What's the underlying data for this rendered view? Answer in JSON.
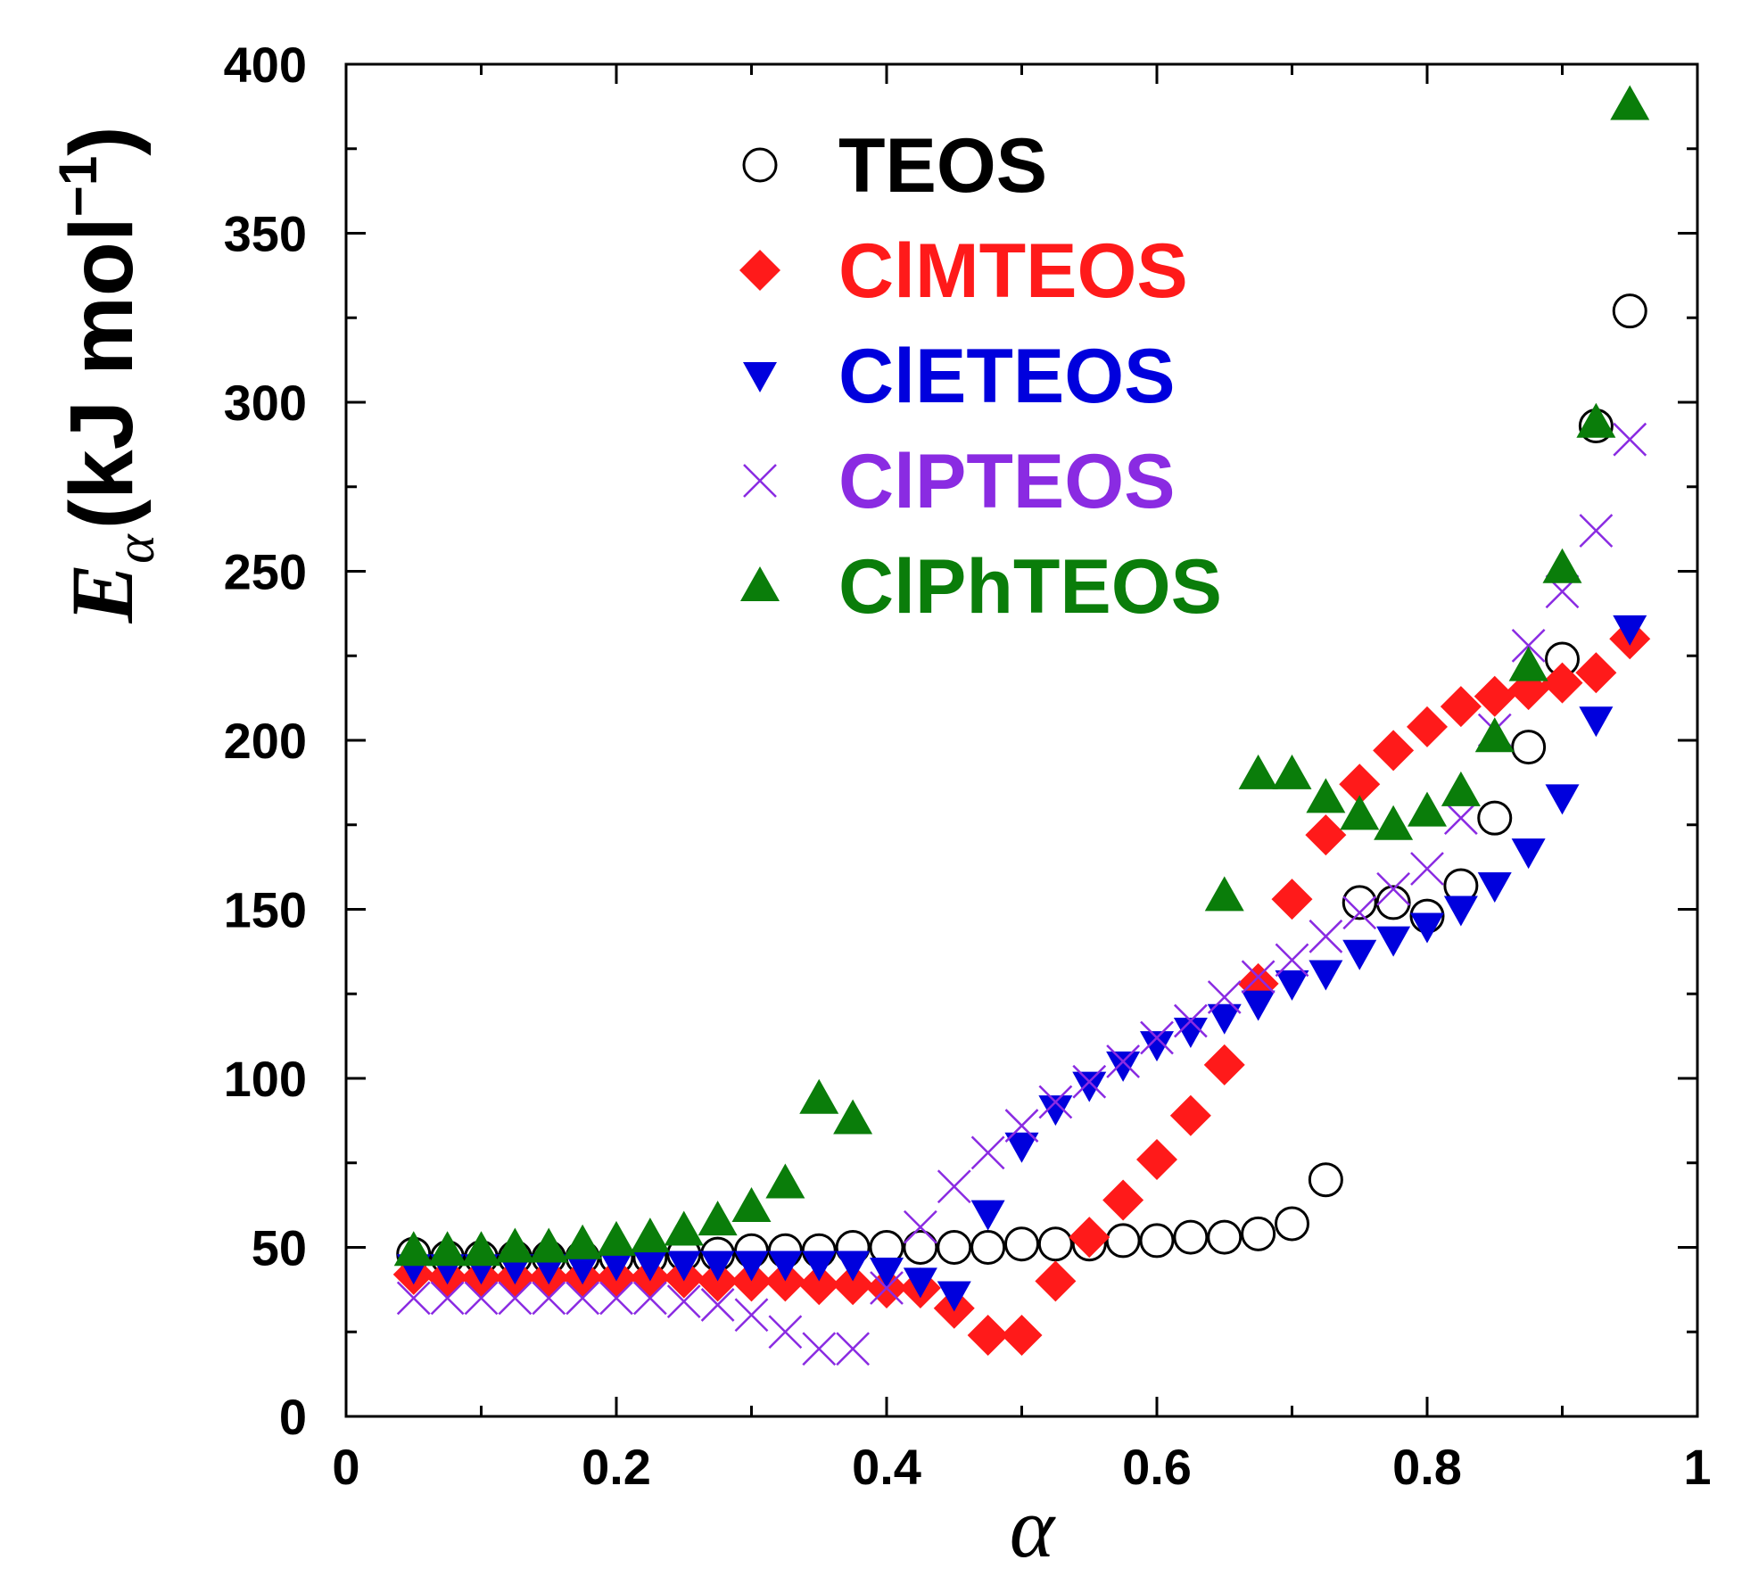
{
  "chart_data": {
    "type": "scatter",
    "title": "",
    "xlabel": "α",
    "ylabel": {
      "symbol": "E",
      "subscript": "α",
      "units_pre": "(kJ mol",
      "units_sup": "−1",
      "units_post": ")"
    },
    "xlim": [
      0,
      1
    ],
    "ylim": [
      0,
      400
    ],
    "x_ticks": [
      0,
      0.2,
      0.4,
      0.6,
      0.8,
      1
    ],
    "x_tick_labels": [
      "0",
      "0.2",
      "0.4",
      "0.6",
      "0.8",
      "1"
    ],
    "x_minor_ticks": [
      0.1,
      0.3,
      0.5,
      0.7,
      0.9
    ],
    "y_ticks": [
      0,
      50,
      100,
      150,
      200,
      250,
      300,
      350,
      400
    ],
    "y_tick_labels": [
      "0",
      "50",
      "100",
      "150",
      "200",
      "250",
      "300",
      "350",
      "400"
    ],
    "y_minor_ticks": [
      25,
      75,
      125,
      175,
      225,
      275,
      325,
      375
    ],
    "grid": false,
    "legend_position": "top-center",
    "series": [
      {
        "name": "TEOS",
        "color": "#000000",
        "marker": "open-circle",
        "x": [
          0.05,
          0.075,
          0.1,
          0.125,
          0.15,
          0.175,
          0.2,
          0.225,
          0.25,
          0.275,
          0.3,
          0.325,
          0.35,
          0.375,
          0.4,
          0.425,
          0.45,
          0.475,
          0.5,
          0.525,
          0.55,
          0.575,
          0.6,
          0.625,
          0.65,
          0.675,
          0.7,
          0.725,
          0.75,
          0.775,
          0.8,
          0.825,
          0.85,
          0.875,
          0.9,
          0.925,
          0.95
        ],
        "values": [
          48,
          47,
          47,
          47,
          47,
          47,
          47,
          47,
          48,
          48,
          49,
          49,
          49,
          50,
          50,
          50,
          50,
          50,
          51,
          51,
          51,
          52,
          52,
          53,
          53,
          54,
          57,
          70,
          152,
          152,
          148,
          157,
          177,
          198,
          224,
          293,
          327
        ]
      },
      {
        "name": "ClMTEOS",
        "color": "#ff1a1a",
        "marker": "diamond",
        "x": [
          0.05,
          0.075,
          0.1,
          0.125,
          0.15,
          0.175,
          0.2,
          0.225,
          0.25,
          0.275,
          0.3,
          0.325,
          0.35,
          0.375,
          0.4,
          0.425,
          0.45,
          0.475,
          0.5,
          0.525,
          0.55,
          0.575,
          0.6,
          0.625,
          0.65,
          0.675,
          0.7,
          0.725,
          0.75,
          0.775,
          0.8,
          0.825,
          0.85,
          0.875,
          0.9,
          0.925,
          0.95
        ],
        "values": [
          42,
          41,
          41,
          41,
          41,
          41,
          41,
          41,
          41,
          40,
          40,
          40,
          39,
          39,
          38,
          38,
          32,
          24,
          24,
          40,
          53,
          64,
          76,
          89,
          104,
          128,
          153,
          172,
          187,
          197,
          204,
          210,
          213,
          215,
          217,
          220,
          230
        ]
      },
      {
        "name": "ClETEOS",
        "color": "#0000dd",
        "marker": "triangle-down",
        "x": [
          0.05,
          0.075,
          0.1,
          0.125,
          0.15,
          0.175,
          0.2,
          0.225,
          0.25,
          0.275,
          0.3,
          0.325,
          0.35,
          0.375,
          0.4,
          0.425,
          0.45,
          0.475,
          0.5,
          0.525,
          0.55,
          0.575,
          0.6,
          0.625,
          0.65,
          0.675,
          0.7,
          0.725,
          0.75,
          0.775,
          0.8,
          0.825,
          0.85,
          0.875,
          0.9,
          0.925,
          0.95
        ],
        "values": [
          44,
          44,
          44,
          44,
          44,
          44,
          45,
          45,
          45,
          45,
          45,
          45,
          45,
          45,
          43,
          40,
          36,
          60,
          80,
          91,
          98,
          104,
          110,
          114,
          118,
          122,
          128,
          131,
          137,
          141,
          145,
          150,
          157,
          167,
          183,
          206,
          233
        ]
      },
      {
        "name": "ClPTEOS",
        "color": "#8a2be2",
        "marker": "cross",
        "x": [
          0.05,
          0.075,
          0.1,
          0.125,
          0.15,
          0.175,
          0.2,
          0.225,
          0.25,
          0.275,
          0.3,
          0.325,
          0.35,
          0.375,
          0.4,
          0.425,
          0.45,
          0.475,
          0.5,
          0.525,
          0.55,
          0.575,
          0.6,
          0.625,
          0.65,
          0.675,
          0.7,
          0.725,
          0.75,
          0.775,
          0.8,
          0.825,
          0.85,
          0.875,
          0.9,
          0.925,
          0.95
        ],
        "values": [
          35,
          35,
          35,
          35,
          35,
          35,
          35,
          35,
          34,
          33,
          30,
          25,
          20,
          20,
          38,
          56,
          68,
          78,
          86,
          93,
          99,
          105,
          112,
          117,
          124,
          130,
          135,
          142,
          149,
          156,
          162,
          177,
          203,
          228,
          244,
          262,
          289
        ]
      },
      {
        "name": "ClPhTEOS",
        "color": "#0a7d0a",
        "marker": "triangle-up",
        "x": [
          0.05,
          0.075,
          0.1,
          0.125,
          0.15,
          0.175,
          0.2,
          0.225,
          0.25,
          0.275,
          0.3,
          0.325,
          0.35,
          0.375,
          0.65,
          0.675,
          0.7,
          0.725,
          0.75,
          0.775,
          0.8,
          0.825,
          0.85,
          0.875,
          0.9,
          0.925,
          0.95
        ],
        "values": [
          49,
          49,
          49,
          50,
          50,
          51,
          52,
          53,
          55,
          58,
          62,
          69,
          94,
          88,
          154,
          190,
          190,
          183,
          178,
          175,
          179,
          185,
          201,
          222,
          251,
          294,
          388
        ]
      }
    ]
  }
}
